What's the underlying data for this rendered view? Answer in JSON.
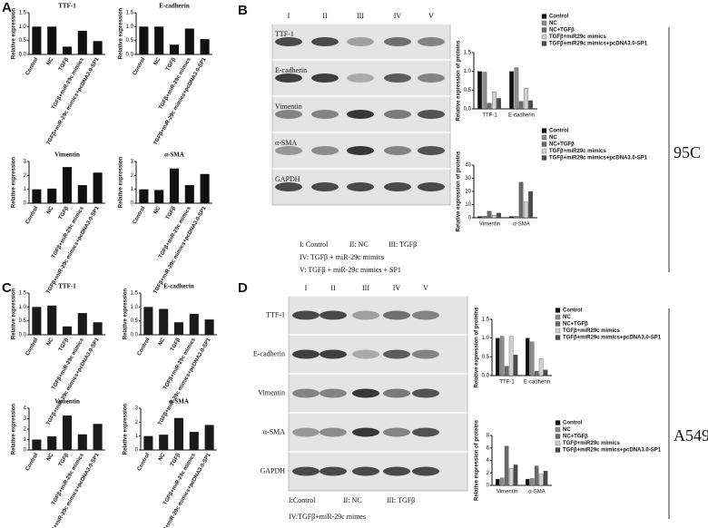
{
  "figure": {
    "panel_labels": [
      "A",
      "B",
      "C",
      "D"
    ],
    "cell_lines": [
      "95C",
      "A549"
    ],
    "blots": [
      {
        "lanes": [
          "I",
          "II",
          "III",
          "IV",
          "V"
        ],
        "proteins": [
          "TTF-1",
          "E-cadherin",
          "Vimentin",
          "α-SMA",
          "GAPDH"
        ],
        "legend": [
          "I: Control",
          "II: NC",
          "III: TGFβ",
          "IV: TGFβ + miR-29c mimics",
          "V: TGFβ + miR-29c mimics + SP1"
        ]
      },
      {
        "lanes": [
          "I",
          "II",
          "III",
          "IV",
          "V"
        ],
        "proteins": [
          "TTF-1",
          "E-cadherin",
          "Vimentin",
          "α-SMA",
          "GAPDH"
        ],
        "legend": [
          "I:Control",
          "II: NC",
          "III: TGFβ",
          "IV:TGFβ+miR-29c mimes"
        ]
      }
    ]
  },
  "chart_data": [
    {
      "type": "bar",
      "title": "TTF-1",
      "y_label": "Relative expression",
      "categories": [
        "Control",
        "NC",
        "TGFβ",
        "TGFβ+miR-29c mimics",
        "TGFβ+miR-29c mimics+pcDNA3.0-SP1"
      ],
      "values": [
        1.0,
        1.0,
        0.28,
        0.85,
        0.48
      ],
      "color": "#111111",
      "ylim": [
        0,
        1.5
      ],
      "yticks": [
        {
          "value": 0,
          "label": "0.0"
        },
        {
          "value": 0.5,
          "label": "0.5"
        },
        {
          "value": 1,
          "label": "1.0"
        },
        {
          "value": 1.5,
          "label": "1.5"
        }
      ]
    },
    {
      "type": "bar",
      "title": "E-cadherin",
      "y_label": "Relative expression",
      "categories": [
        "Control",
        "NC",
        "TGFβ",
        "TGFβ+miR-29c mimics",
        "TGFβ+miR-29c mimics+pcDNA3.0-SP1"
      ],
      "values": [
        1.0,
        1.0,
        0.35,
        0.93,
        0.55
      ],
      "color": "#111111",
      "ylim": [
        0,
        1.5
      ],
      "yticks": [
        {
          "value": 0,
          "label": "0.0"
        },
        {
          "value": 0.5,
          "label": "0.5"
        },
        {
          "value": 1,
          "label": "1.0"
        },
        {
          "value": 1.5,
          "label": "1.5"
        }
      ]
    },
    {
      "type": "bar",
      "title": "Vimentin",
      "y_label": "Relative expression",
      "categories": [
        "Control",
        "NC",
        "TGFβ",
        "TGFβ+miR-29c mimics",
        "TGFβ+miR-29c mimics+pcDNA3.0-SP1"
      ],
      "values": [
        1.0,
        1.05,
        2.6,
        1.3,
        2.2
      ],
      "color": "#111111",
      "ylim": [
        0,
        3
      ],
      "yticks": [
        0,
        1,
        2,
        3
      ]
    },
    {
      "type": "bar",
      "title": "α-SMA",
      "y_label": "Relative expression",
      "categories": [
        "Control",
        "NC",
        "TGFβ",
        "TGFβ+miR-29c mimics",
        "TGFβ+miR-29c mimics+pcDNA3.0-SP1"
      ],
      "values": [
        1.0,
        0.95,
        2.5,
        1.3,
        2.1
      ],
      "color": "#111111",
      "ylim": [
        0,
        3
      ],
      "yticks": [
        0,
        1,
        2,
        3
      ]
    },
    {
      "type": "grouped_bar",
      "y_label": "Relative expression of proteins",
      "categories": [
        "TTF-1",
        "E-cadherin"
      ],
      "ylim": [
        0,
        1.5
      ],
      "yticks": [
        {
          "value": 0,
          "label": "0.0"
        },
        {
          "value": 0.5,
          "label": "0.5"
        },
        {
          "value": 1,
          "label": "1.0"
        },
        {
          "value": 1.5,
          "label": "1.5"
        }
      ],
      "series": [
        {
          "name": "Control",
          "color": "#111111",
          "values": [
            1.0,
            1.0
          ]
        },
        {
          "name": "NC",
          "color": "#8c8c8c",
          "values": [
            0.98,
            1.1
          ]
        },
        {
          "name": "NC+TGFβ",
          "color": "#6a6a6a",
          "values": [
            0.15,
            0.2
          ]
        },
        {
          "name": "TGFβ+miR29c mimics",
          "color": "#d0d0d0",
          "values": [
            0.45,
            0.55
          ]
        },
        {
          "name": "TGFβ+miR29c mimics+pcDNA3.0-SP1",
          "color": "#4a4a4a",
          "values": [
            0.28,
            0.22
          ]
        }
      ]
    },
    {
      "type": "grouped_bar",
      "y_label": "Relative expression of proteins",
      "categories": [
        "Vimentin",
        "α-SMA"
      ],
      "ylim": [
        0,
        40
      ],
      "yticks": [
        0,
        10,
        20,
        30,
        40
      ],
      "series": [
        {
          "name": "Control",
          "color": "#111111",
          "values": [
            1.0,
            1.0
          ]
        },
        {
          "name": "NC",
          "color": "#8c8c8c",
          "values": [
            1.2,
            1.1
          ]
        },
        {
          "name": "NC+TGFβ",
          "color": "#6a6a6a",
          "values": [
            5,
            27
          ]
        },
        {
          "name": "TGFβ+miR29c mimics",
          "color": "#d0d0d0",
          "values": [
            2,
            12
          ]
        },
        {
          "name": "TGFβ+miR29c mimics+pcDNA3.0-SP1",
          "color": "#4a4a4a",
          "values": [
            3.5,
            20
          ]
        }
      ]
    },
    {
      "type": "bar",
      "title": "TTF-1",
      "y_label": "Relative expression",
      "categories": [
        "Control",
        "NC",
        "TGFβ",
        "TGFβ+miR-29c mimics",
        "TGFβ+miR-29c mimics+pcDNA3.0-SP1"
      ],
      "values": [
        1.0,
        1.05,
        0.3,
        0.78,
        0.45
      ],
      "color": "#1a1a1a",
      "ylim": [
        0,
        1.5
      ],
      "yticks": [
        {
          "value": 0,
          "label": "0.0"
        },
        {
          "value": 0.5,
          "label": "0.5"
        },
        {
          "value": 1,
          "label": "1.0"
        },
        {
          "value": 1.5,
          "label": "1.5"
        }
      ]
    },
    {
      "type": "bar",
      "title": "E-cadherin",
      "y_label": "Relative expression",
      "categories": [
        "Control",
        "NC",
        "TGFβ",
        "TGFβ+miR-29c mimics",
        "TGFβ+miR-29c mimics+pcDNA3.0-SP1"
      ],
      "values": [
        1.0,
        0.93,
        0.45,
        0.75,
        0.55
      ],
      "color": "#1a1a1a",
      "ylim": [
        0,
        1.5
      ],
      "yticks": [
        {
          "value": 0,
          "label": "0.0"
        },
        {
          "value": 0.5,
          "label": "0.5"
        },
        {
          "value": 1,
          "label": "1.0"
        },
        {
          "value": 1.5,
          "label": "1.5"
        }
      ]
    },
    {
      "type": "bar",
      "title": "Vimentin",
      "y_label": "Relative expression",
      "categories": [
        "Control",
        "NC",
        "TGFβ",
        "TGFβ+miR-29c mimics",
        "TGFβ+miR-29c mimics+pcDNA3.0-SP1"
      ],
      "values": [
        1.0,
        1.3,
        3.3,
        1.5,
        2.5
      ],
      "color": "#1a1a1a",
      "ylim": [
        0,
        4
      ],
      "yticks": [
        0,
        1,
        2,
        3,
        4
      ]
    },
    {
      "type": "bar",
      "title": "α-SMA",
      "y_label": "Relative expression",
      "categories": [
        "Control",
        "NC",
        "TGFβ",
        "TGFβ+miR-29c mimics",
        "TGFβ+miR-29c mimics+pcDNA3.0-SP1"
      ],
      "values": [
        1.0,
        1.1,
        2.3,
        1.3,
        1.8
      ],
      "color": "#1a1a1a",
      "ylim": [
        0,
        3
      ],
      "yticks": [
        0,
        1,
        2,
        3
      ]
    },
    {
      "type": "grouped_bar",
      "y_label": "Relative expression of proteins",
      "categories": [
        "TTF-1",
        "E-cadherin"
      ],
      "ylim": [
        0,
        1.5
      ],
      "yticks": [
        {
          "value": 0,
          "label": "0.0"
        },
        {
          "value": 0.5,
          "label": "0.5"
        },
        {
          "value": 1,
          "label": "1.0"
        },
        {
          "value": 1.5,
          "label": "1.5"
        }
      ],
      "series": [
        {
          "name": "Control",
          "color": "#111111",
          "values": [
            1.0,
            1.0
          ]
        },
        {
          "name": "NC",
          "color": "#8c8c8c",
          "values": [
            1.05,
            0.9
          ]
        },
        {
          "name": "NC+TGFβ",
          "color": "#6a6a6a",
          "values": [
            0.25,
            0.12
          ]
        },
        {
          "name": "TGFβ+miR29c mimics",
          "color": "#d0d0d0",
          "values": [
            1.05,
            0.45
          ]
        },
        {
          "name": "TGFβ+miR29c mimics+pcDNA3.0-SP1",
          "color": "#4a4a4a",
          "values": [
            0.55,
            0.15
          ]
        }
      ]
    },
    {
      "type": "grouped_bar",
      "y_label": "Relative expression of proteins",
      "categories": [
        "Vimentin",
        "α-SMA"
      ],
      "ylim": [
        0,
        8
      ],
      "yticks": [
        0,
        2,
        4,
        6,
        8
      ],
      "series": [
        {
          "name": "Control",
          "color": "#111111",
          "values": [
            1.0,
            1.0
          ]
        },
        {
          "name": "NC",
          "color": "#8c8c8c",
          "values": [
            1.2,
            1.1
          ]
        },
        {
          "name": "NC+TGFβ",
          "color": "#6a6a6a",
          "values": [
            6.3,
            3.1
          ]
        },
        {
          "name": "TGFβ+miR29c mimics",
          "color": "#d0d0d0",
          "values": [
            2.7,
            1.8
          ]
        },
        {
          "name": "TGFβ+miR29c mimics+pcDNA3.0-SP1",
          "color": "#4a4a4a",
          "values": [
            3.3,
            2.3
          ]
        }
      ]
    }
  ]
}
